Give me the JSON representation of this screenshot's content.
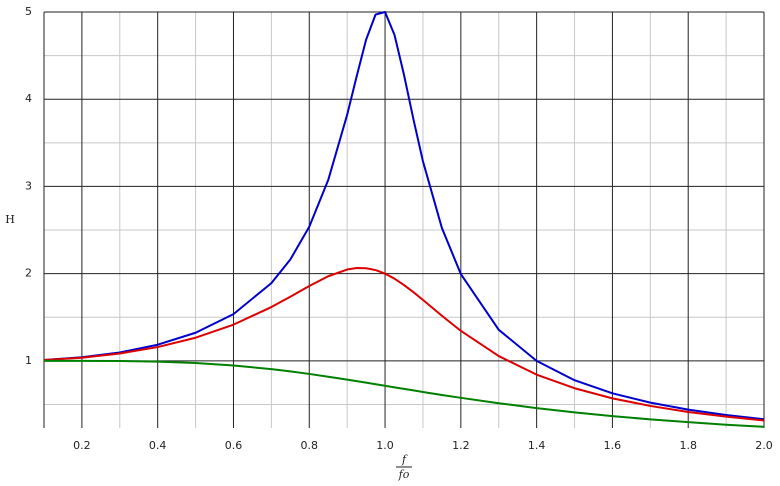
{
  "chart_data": {
    "type": "line",
    "ylabel": "H",
    "xlabel": {
      "numerator": "f",
      "denominator": "fo"
    },
    "x": [
      0.1,
      0.2,
      0.3,
      0.4,
      0.5,
      0.6,
      0.7,
      0.75,
      0.8,
      0.85,
      0.9,
      0.925,
      0.95,
      0.975,
      1.0,
      1.025,
      1.05,
      1.075,
      1.1,
      1.15,
      1.2,
      1.3,
      1.4,
      1.5,
      1.6,
      1.7,
      1.8,
      1.9,
      2.0
    ],
    "series": [
      {
        "color": "#0000cc",
        "values": [
          1.01,
          1.041,
          1.096,
          1.185,
          1.322,
          1.536,
          1.891,
          2.162,
          2.538,
          3.073,
          3.821,
          4.261,
          4.683,
          4.971,
          5.0,
          4.736,
          4.279,
          3.768,
          3.288,
          2.524,
          1.995,
          1.356,
          1.0,
          0.778,
          0.628,
          0.521,
          0.441,
          0.379,
          0.33
        ]
      },
      {
        "color": "#dd0000",
        "values": [
          1.009,
          1.036,
          1.084,
          1.158,
          1.265,
          1.415,
          1.617,
          1.735,
          1.858,
          1.97,
          2.047,
          2.064,
          2.062,
          2.041,
          2.0,
          1.942,
          1.869,
          1.787,
          1.699,
          1.517,
          1.344,
          1.055,
          0.842,
          0.686,
          0.57,
          0.483,
          0.414,
          0.36,
          0.316
        ]
      },
      {
        "color": "#008000",
        "values": [
          1.0,
          1.0,
          0.998,
          0.991,
          0.975,
          0.947,
          0.905,
          0.879,
          0.85,
          0.818,
          0.785,
          0.767,
          0.75,
          0.732,
          0.714,
          0.696,
          0.679,
          0.661,
          0.643,
          0.609,
          0.576,
          0.514,
          0.458,
          0.409,
          0.366,
          0.329,
          0.297,
          0.268,
          0.244
        ]
      }
    ],
    "xlim": [
      0.1,
      2.0
    ],
    "ylim": [
      0.23,
      5
    ],
    "xticks": [
      0.2,
      0.4,
      0.6,
      0.8,
      {
        "value": 1.0,
        "label": "1.0"
      },
      1.2,
      1.4,
      1.6,
      1.8,
      {
        "value": 2.0,
        "label": "2.0"
      }
    ],
    "yticks": [
      1,
      2,
      3,
      4,
      5
    ],
    "x_minor_ticks": [
      0.1,
      0.3,
      0.5,
      0.7,
      0.9,
      1.1,
      1.3,
      1.5,
      1.7,
      1.9
    ],
    "y_minor_ticks": [
      0.5,
      1.5,
      2.5,
      3.5,
      4.5
    ],
    "grid": true
  }
}
